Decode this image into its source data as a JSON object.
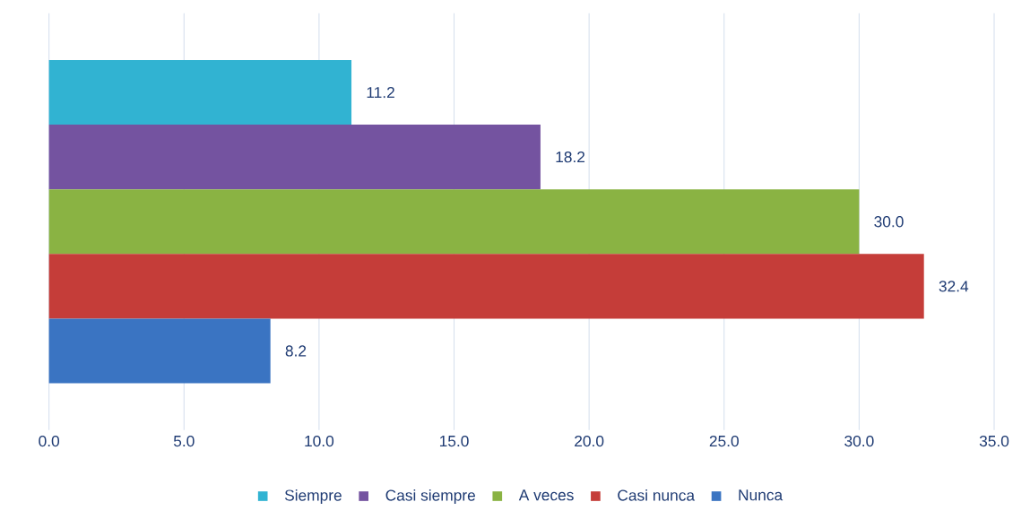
{
  "chart_data": {
    "type": "bar",
    "orientation": "horizontal",
    "categories": [
      null
    ],
    "series": [
      {
        "name": "Siempre",
        "color": "#31b3d2",
        "values": [
          11.2
        ],
        "value_labels": [
          "11.2"
        ]
      },
      {
        "name": "Casi siempre",
        "color": "#7453a0",
        "values": [
          18.2
        ],
        "value_labels": [
          "18.2"
        ]
      },
      {
        "name": "A veces",
        "color": "#8ab343",
        "values": [
          30.0
        ],
        "value_labels": [
          "30.0"
        ]
      },
      {
        "name": "Casi nunca",
        "color": "#c53d39",
        "values": [
          32.4
        ],
        "value_labels": [
          "32.4"
        ]
      },
      {
        "name": "Nunca",
        "color": "#3a74c2",
        "values": [
          8.2
        ],
        "value_labels": [
          "8.2"
        ]
      }
    ],
    "xlim": [
      0,
      35
    ],
    "xticks": [
      {
        "value": 0,
        "label": "0.0"
      },
      {
        "value": 5,
        "label": "5.0"
      },
      {
        "value": 10,
        "label": "10.0"
      },
      {
        "value": 15,
        "label": "15.0"
      },
      {
        "value": 20,
        "label": "20.0"
      },
      {
        "value": 25,
        "label": "25.0"
      },
      {
        "value": 30,
        "label": "30.0"
      },
      {
        "value": 35,
        "label": "35.0"
      }
    ],
    "grid": "x",
    "legend": "bottom"
  }
}
